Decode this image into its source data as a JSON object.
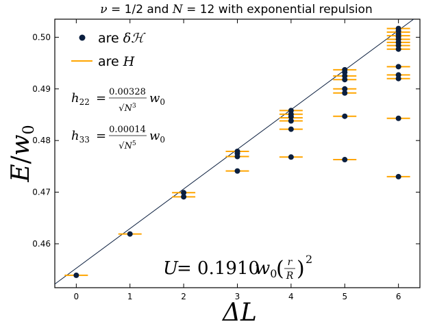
{
  "chart_data": {
    "type": "scatter",
    "title": "ν = 1/2 and N = 12 with exponential repulsion",
    "title_parts": {
      "nu": "ν",
      "eq1": " = 1/2",
      "and": " and ",
      "N": "N",
      "eq2": " = 12",
      "rest": " with exponential repulsion"
    },
    "xlabel": "ΔL",
    "ylabel": "E/w0",
    "ylabel_parts": {
      "E": "E",
      "slash": "/",
      "w": "w",
      "sub": "0"
    },
    "xlim": [
      -0.4,
      6.4
    ],
    "ylim": [
      0.4515,
      0.5035
    ],
    "xticks": [
      "0",
      "1",
      "2",
      "3",
      "4",
      "5",
      "6"
    ],
    "yticks": [
      "0.46",
      "0.47",
      "0.48",
      "0.49",
      "0.50"
    ],
    "ytick_values": [
      0.46,
      0.47,
      0.48,
      0.49,
      0.5
    ],
    "grid": false,
    "legend": {
      "position": "top-left",
      "entries": [
        {
          "marker": "dot",
          "text_prefix": "are ",
          "text_math": "δℋ"
        },
        {
          "marker": "line",
          "text_prefix": "are ",
          "text_math": "H"
        }
      ]
    },
    "annotations": {
      "h22": {
        "lhs": "h",
        "lhs_sub": "22",
        "num": "0.00328",
        "den": "√N",
        "den_sup": "3",
        "rhs": "w",
        "rhs_sub": "0"
      },
      "h33": {
        "lhs": "h",
        "lhs_sub": "33",
        "num": "0.00014",
        "den": "√N",
        "den_sup": "5",
        "rhs": "w",
        "rhs_sub": "0"
      },
      "potential": {
        "lhs": "U",
        "coef": "= 0.1910",
        "w": "w",
        "w_sub": "0",
        "frac_num": "r",
        "frac_den": "R",
        "power": "2"
      }
    },
    "fit_line": {
      "x": [
        -0.4,
        6.4
      ],
      "y": [
        0.4522,
        0.5044
      ]
    },
    "series": [
      {
        "name": "δℋ",
        "color": "#0b1f3f",
        "points": [
          [
            0,
            0.4539
          ],
          [
            1,
            0.4619
          ],
          [
            2,
            0.4699
          ],
          [
            2,
            0.4691
          ],
          [
            3,
            0.4779
          ],
          [
            3,
            0.4775
          ],
          [
            3,
            0.4769
          ],
          [
            3,
            0.4741
          ],
          [
            4,
            0.4858
          ],
          [
            4,
            0.4851
          ],
          [
            4,
            0.4846
          ],
          [
            4,
            0.4838
          ],
          [
            4,
            0.4822
          ],
          [
            4,
            0.4768
          ],
          [
            5,
            0.4937
          ],
          [
            5,
            0.4932
          ],
          [
            5,
            0.4925
          ],
          [
            5,
            0.4918
          ],
          [
            5,
            0.49
          ],
          [
            5,
            0.4892
          ],
          [
            5,
            0.4847
          ],
          [
            5,
            0.4763
          ],
          [
            6,
            0.5017
          ],
          [
            6,
            0.5012
          ],
          [
            6,
            0.5006
          ],
          [
            6,
            0.5001
          ],
          [
            6,
            0.4996
          ],
          [
            6,
            0.499
          ],
          [
            6,
            0.4984
          ],
          [
            6,
            0.4977
          ],
          [
            6,
            0.4943
          ],
          [
            6,
            0.4927
          ],
          [
            6,
            0.492
          ],
          [
            6,
            0.4843
          ],
          [
            6,
            0.473
          ]
        ]
      },
      {
        "name": "H",
        "color": "#ffa500",
        "points": [
          [
            0,
            0.4539
          ],
          [
            1,
            0.4619
          ],
          [
            2,
            0.4699
          ],
          [
            2,
            0.4691
          ],
          [
            3,
            0.4779
          ],
          [
            3,
            0.4769
          ],
          [
            3,
            0.4741
          ],
          [
            4,
            0.4858
          ],
          [
            4,
            0.4851
          ],
          [
            4,
            0.4844
          ],
          [
            4,
            0.4838
          ],
          [
            4,
            0.4822
          ],
          [
            4,
            0.4768
          ],
          [
            5,
            0.4937
          ],
          [
            5,
            0.4925
          ],
          [
            5,
            0.4918
          ],
          [
            5,
            0.49
          ],
          [
            5,
            0.4892
          ],
          [
            5,
            0.4847
          ],
          [
            5,
            0.4763
          ],
          [
            6,
            0.5017
          ],
          [
            6,
            0.501
          ],
          [
            6,
            0.5003
          ],
          [
            6,
            0.4996
          ],
          [
            6,
            0.499
          ],
          [
            6,
            0.4984
          ],
          [
            6,
            0.4977
          ],
          [
            6,
            0.4943
          ],
          [
            6,
            0.4927
          ],
          [
            6,
            0.492
          ],
          [
            6,
            0.4843
          ],
          [
            6,
            0.473
          ]
        ]
      }
    ]
  }
}
